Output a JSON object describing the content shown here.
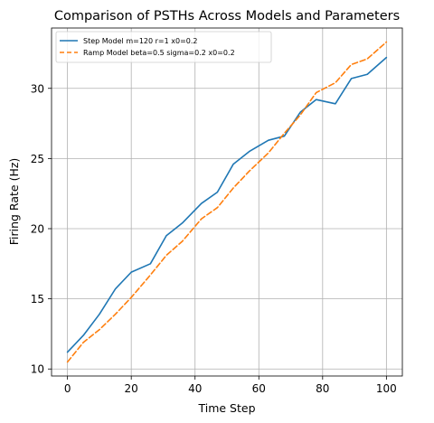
{
  "chart_data": {
    "type": "line",
    "title": "Comparison of PSTHs Across Models and Parameters",
    "xlabel": "Time Step",
    "ylabel": "Firing Rate (Hz)",
    "xlim": [
      -5,
      105
    ],
    "ylim": [
      9.5,
      34.3
    ],
    "xticks": [
      0,
      20,
      40,
      60,
      80,
      100
    ],
    "xtick_labels": [
      "0",
      "20",
      "40",
      "60",
      "80",
      "100"
    ],
    "yticks": [
      10,
      15,
      20,
      25,
      30
    ],
    "ytick_labels": [
      "10",
      "15",
      "20",
      "25",
      "30"
    ],
    "grid": true,
    "legend_position": "top-left",
    "x": [
      0,
      5,
      10,
      15,
      20,
      26,
      31,
      36,
      42,
      47,
      52,
      57,
      63,
      68,
      73,
      78,
      84,
      89,
      94,
      100
    ],
    "series": [
      {
        "name": "Step Model m=120 r=1 x0=0.2",
        "color": "#1f77b4",
        "linestyle": "solid",
        "values": [
          11.2,
          12.4,
          13.9,
          15.7,
          16.9,
          17.5,
          19.5,
          20.4,
          21.8,
          22.6,
          24.6,
          25.5,
          26.3,
          26.6,
          28.3,
          29.2,
          28.9,
          30.7,
          31.0,
          32.2
        ]
      },
      {
        "name": "Ramp Model beta=0.5 sigma=0.2 x0=0.2",
        "color": "#ff7f0e",
        "linestyle": "dashed",
        "values": [
          10.5,
          11.9,
          12.8,
          13.9,
          15.1,
          16.7,
          18.1,
          19.1,
          20.7,
          21.5,
          22.9,
          24.1,
          25.4,
          26.8,
          28.1,
          29.7,
          30.4,
          31.7,
          32.1,
          33.3
        ]
      }
    ]
  }
}
